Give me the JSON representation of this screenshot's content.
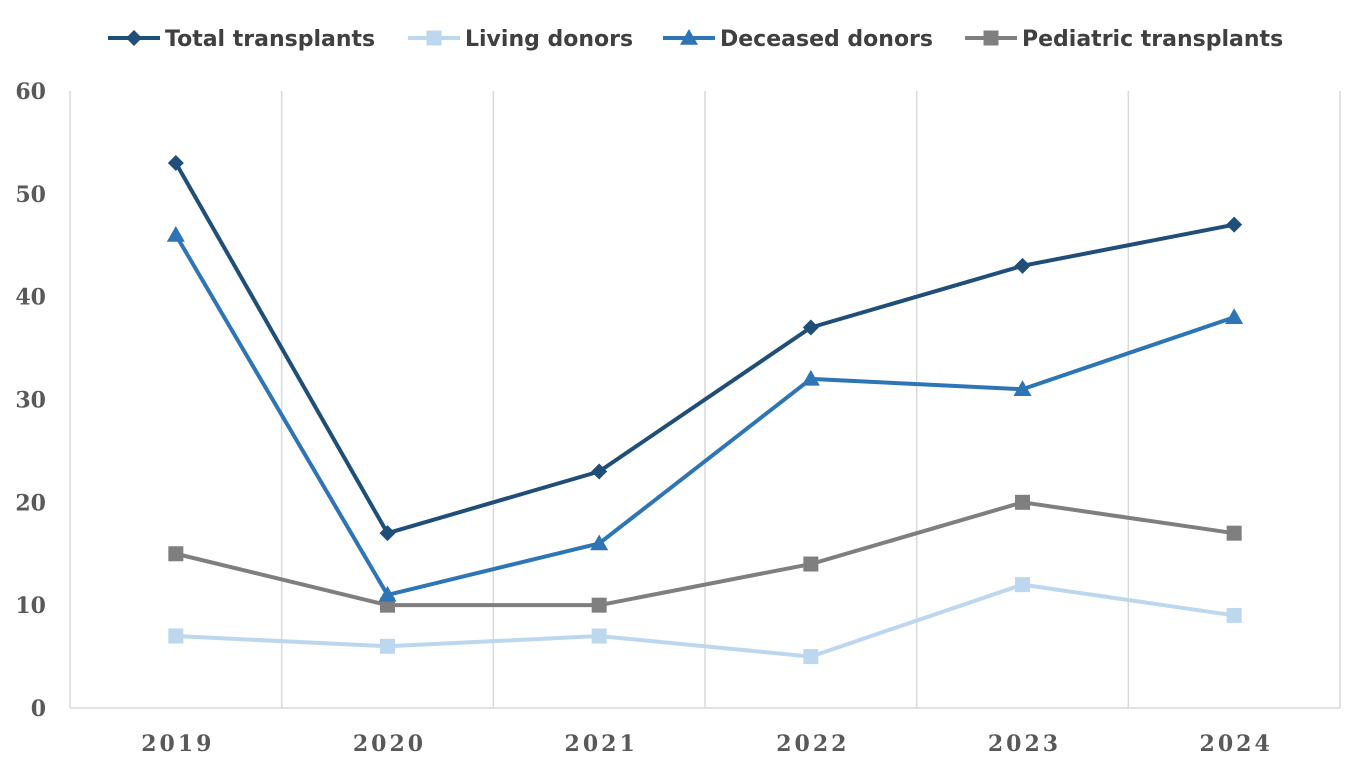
{
  "chart_data": {
    "type": "line",
    "categories": [
      "2019",
      "2020",
      "2021",
      "2022",
      "2023",
      "2024"
    ],
    "ylim": [
      0,
      60
    ],
    "yticks": [
      0,
      10,
      20,
      30,
      40,
      50,
      60
    ],
    "grid": "vertical",
    "legend_position": "top",
    "series": [
      {
        "name": "Total transplants",
        "values": [
          53,
          17,
          23,
          37,
          43,
          47
        ],
        "color": "#1f4e79",
        "marker": "diamond"
      },
      {
        "name": "Living donors",
        "values": [
          7,
          6,
          7,
          5,
          12,
          9
        ],
        "color": "#bdd7ee",
        "marker": "square"
      },
      {
        "name": "Deceased donors",
        "values": [
          46,
          11,
          16,
          32,
          31,
          38
        ],
        "color": "#2e75b6",
        "marker": "triangle"
      },
      {
        "name": "Pediatric transplants",
        "values": [
          15,
          10,
          10,
          14,
          20,
          17
        ],
        "color": "#7f7f7f",
        "marker": "square"
      }
    ]
  }
}
